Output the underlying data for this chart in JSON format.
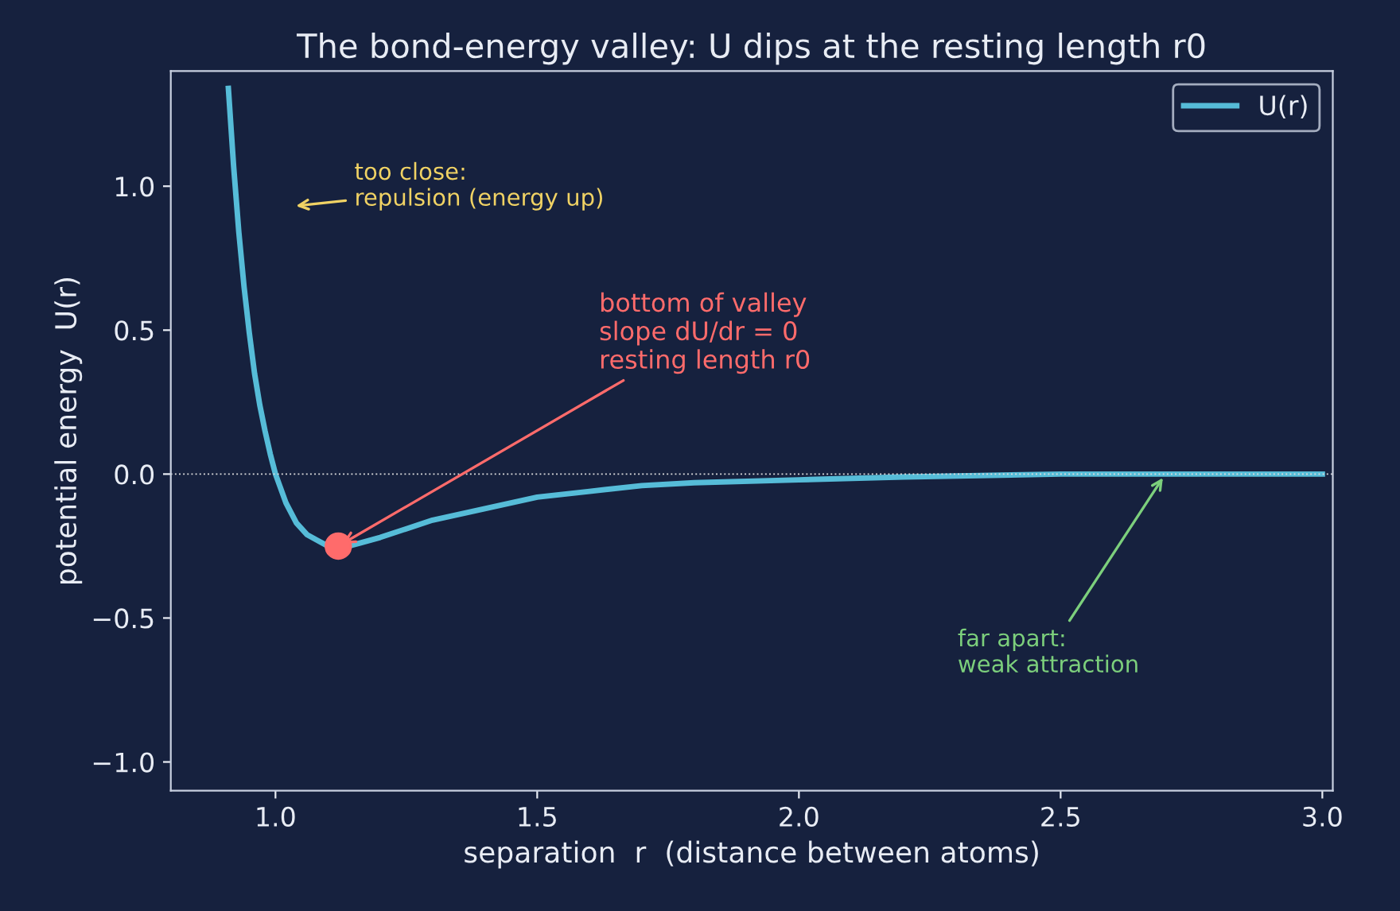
{
  "chart_data": {
    "type": "line",
    "title": "The bond-energy valley: U dips at the resting length r0",
    "xlabel": "separation  r  (distance between atoms)",
    "ylabel": "potential energy  U(r)",
    "series": [
      {
        "name": "U(r)",
        "color": "#56bcd8",
        "x": [
          0.91,
          0.92,
          0.93,
          0.94,
          0.95,
          0.96,
          0.97,
          0.98,
          0.99,
          1.0,
          1.02,
          1.04,
          1.06,
          1.08,
          1.1,
          1.12,
          1.14,
          1.16,
          1.2,
          1.25,
          1.3,
          1.35,
          1.4,
          1.5,
          1.6,
          1.7,
          1.8,
          2.0,
          2.2,
          2.5,
          3.0
        ],
        "values": [
          1.34,
          1.07,
          0.84,
          0.65,
          0.49,
          0.35,
          0.24,
          0.15,
          0.07,
          0.0,
          -0.1,
          -0.17,
          -0.21,
          -0.23,
          -0.25,
          -0.25,
          -0.25,
          -0.24,
          -0.22,
          -0.19,
          -0.16,
          -0.14,
          -0.12,
          -0.08,
          -0.06,
          -0.04,
          -0.03,
          -0.02,
          -0.01,
          0.0,
          0.0
        ]
      },
      {
        "type": "scatter",
        "color": "#ff6b6b",
        "x": [
          1.12
        ],
        "values": [
          -0.25
        ]
      }
    ],
    "xlim": [
      0.8,
      3.02
    ],
    "ylim": [
      -1.1,
      1.4
    ],
    "xticks": [
      {
        "value": 1.0,
        "label": "1.0"
      },
      {
        "value": 1.5,
        "label": "1.5"
      },
      {
        "value": 2.0,
        "label": "2.0"
      },
      {
        "value": 2.5,
        "label": "2.5"
      },
      {
        "value": 3.0,
        "label": "3.0"
      }
    ],
    "yticks": [
      {
        "value": -1.0,
        "label": "−1.0"
      },
      {
        "value": -0.5,
        "label": "−0.5"
      },
      {
        "value": 0.0,
        "label": "0.0"
      },
      {
        "value": 0.5,
        "label": "0.5"
      },
      {
        "value": 1.0,
        "label": "1.0"
      }
    ],
    "ref_lines": [
      {
        "axis": "y",
        "value": 0,
        "color": "#dddddd",
        "line_style": "dotted"
      }
    ],
    "annotations": [
      "too close:\nrepulsion (energy up)",
      {
        "text": "bottom of valley\nslope dU/dr = 0\nresting length r0",
        "x": 1.12,
        "y": -0.25
      },
      {
        "text": "far apart:\nweak attraction",
        "x": 2.7,
        "y": 0.0
      }
    ],
    "grid": false,
    "legend": "top right"
  }
}
